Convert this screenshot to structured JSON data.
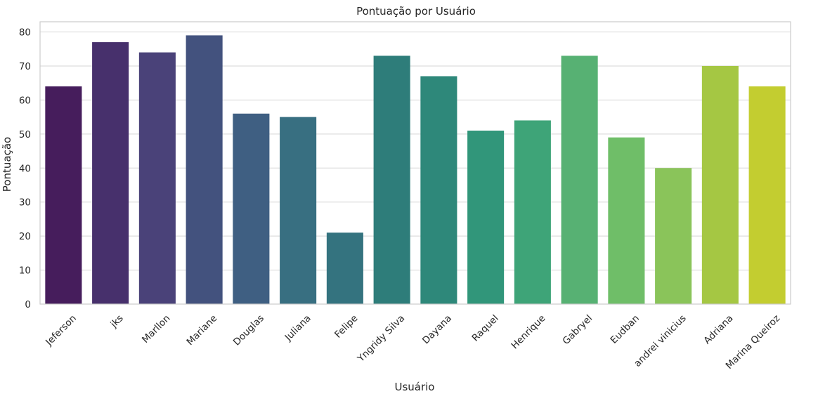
{
  "chart_data": {
    "type": "bar",
    "title": "Pontuação por Usuário",
    "xlabel": "Usuário",
    "ylabel": "Pontuação",
    "categories": [
      "Jeferson",
      "jks",
      "Marllon",
      "Mariane",
      "Douglas",
      "Juliana",
      "Felipe",
      "Yngridy Silva",
      "Dayana",
      "Raquel",
      "Henrique",
      "Gabryel",
      "Eudban",
      "andrei vinicius",
      "Adriana",
      "Marina Queiroz"
    ],
    "values": [
      64,
      77,
      74,
      79,
      56,
      55,
      21,
      73,
      67,
      51,
      54,
      73,
      49,
      40,
      70,
      64
    ],
    "colors": [
      "#461d5c",
      "#47306c",
      "#4a4279",
      "#43527e",
      "#3f5f82",
      "#386f81",
      "#34737f",
      "#2e7d7a",
      "#2e887a",
      "#31967a",
      "#3ea478",
      "#57b173",
      "#6fbe68",
      "#8ac45a",
      "#a5c743",
      "#c3cd30"
    ],
    "ylim": [
      0,
      83
    ],
    "yticks": [
      0,
      10,
      20,
      30,
      40,
      50,
      60,
      70,
      80
    ],
    "grid": "horizontal",
    "legend": "none"
  }
}
